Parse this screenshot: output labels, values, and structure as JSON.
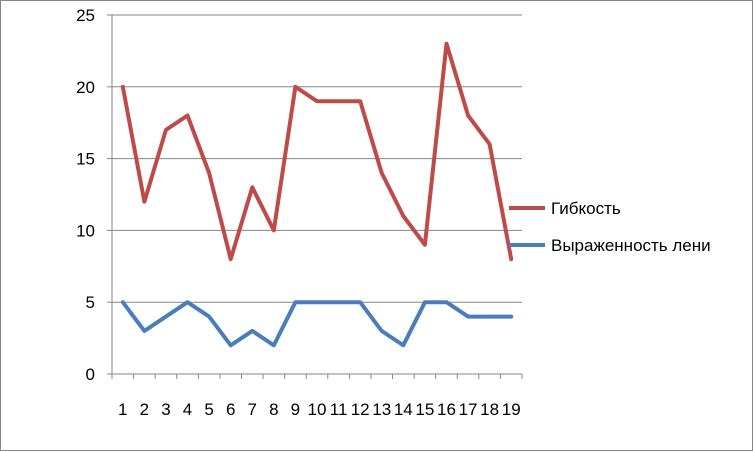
{
  "chart_data": {
    "type": "line",
    "title": "",
    "xlabel": "",
    "ylabel": "",
    "categories": [
      "1",
      "2",
      "3",
      "4",
      "5",
      "6",
      "7",
      "8",
      "9",
      "10",
      "11",
      "12",
      "13",
      "14",
      "15",
      "16",
      "17",
      "18",
      "19"
    ],
    "ylim": [
      0,
      25
    ],
    "yticks": [
      "0",
      "5",
      "10",
      "15",
      "20",
      "25"
    ],
    "grid": "horizontal",
    "legend_position": "right",
    "series": [
      {
        "name": "Гибкость",
        "color": "#be4b48",
        "values": [
          20,
          12,
          17,
          18,
          14,
          8,
          13,
          10,
          20,
          19,
          19,
          19,
          14,
          11,
          9,
          23,
          18,
          16,
          8
        ]
      },
      {
        "name": "Выраженность лени",
        "color": "#4a7ebb",
        "values": [
          5,
          3,
          4,
          5,
          4,
          2,
          3,
          2,
          5,
          5,
          5,
          5,
          3,
          2,
          5,
          5,
          4,
          4,
          4
        ]
      }
    ]
  }
}
